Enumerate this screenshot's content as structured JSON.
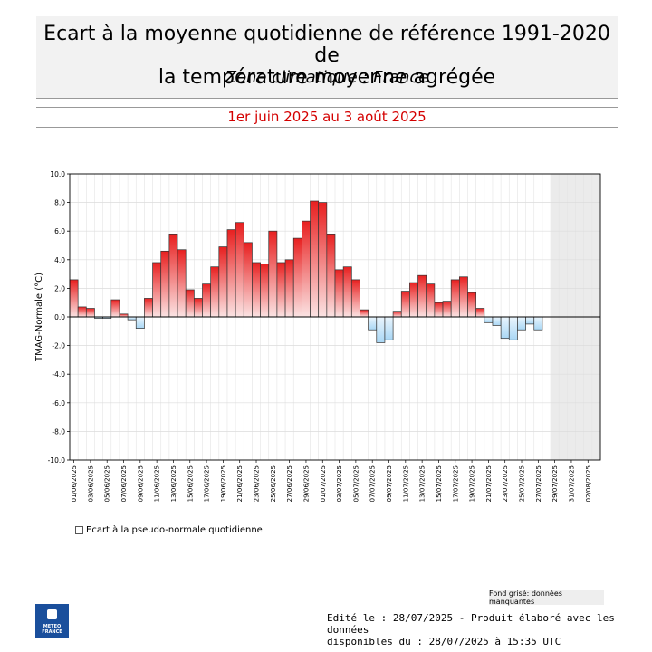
{
  "header": {
    "title_line1": "Ecart à la moyenne quotidienne de référence 1991-2020 de",
    "title_line2": "la température moyenne  agrégée",
    "subtitle": "Zone climatique : France"
  },
  "period": "1er juin 2025 au 3 août 2025",
  "legend": {
    "label": "Ecart à la pseudo-normale quotidienne"
  },
  "missing_note": "Fond grisé: données manquantes",
  "footer": {
    "line1": "Edité le : 28/07/2025 - Produit élaboré avec les données",
    "line2": "disponibles du : 28/07/2025 à 15:35 UTC"
  },
  "logo": {
    "line1": "METEO",
    "line2": "FRANCE"
  },
  "chart_data": {
    "type": "bar",
    "ylabel": "TMAG-Normale (°C)",
    "ylim": [
      -10,
      10
    ],
    "yticks": [
      -10,
      -8,
      -6,
      -4,
      -2,
      0,
      2,
      4,
      6,
      8,
      10
    ],
    "grid": true,
    "x_start": "01/06/2025",
    "x_tick_labels": [
      "01/06/2025",
      "03/06/2025",
      "05/06/2025",
      "07/06/2025",
      "09/06/2025",
      "11/06/2025",
      "13/06/2025",
      "15/06/2025",
      "17/06/2025",
      "19/06/2025",
      "21/06/2025",
      "23/06/2025",
      "25/06/2025",
      "27/06/2025",
      "29/06/2025",
      "01/07/2025",
      "03/07/2025",
      "05/07/2025",
      "07/07/2025",
      "09/07/2025",
      "11/07/2025",
      "13/07/2025",
      "15/07/2025",
      "17/07/2025",
      "19/07/2025",
      "21/07/2025",
      "23/07/2025",
      "25/07/2025",
      "27/07/2025",
      "29/07/2025",
      "31/07/2025",
      "02/08/2025"
    ],
    "values": [
      2.6,
      0.7,
      0.6,
      -0.1,
      -0.1,
      1.2,
      0.2,
      -0.2,
      -0.8,
      1.3,
      3.8,
      4.6,
      5.8,
      4.7,
      1.9,
      1.3,
      2.3,
      3.5,
      4.9,
      6.1,
      6.6,
      5.2,
      3.8,
      3.7,
      6.0,
      3.8,
      4.0,
      5.5,
      6.7,
      8.1,
      8.0,
      5.8,
      3.3,
      3.5,
      2.6,
      0.5,
      -0.9,
      -1.8,
      -1.6,
      0.4,
      1.8,
      2.4,
      2.9,
      2.3,
      1.0,
      1.1,
      2.6,
      2.8,
      1.7,
      0.6,
      -0.4,
      -0.6,
      -1.5,
      -1.6,
      -0.9,
      -0.5,
      -0.9
    ],
    "missing_from": "29/07/2025",
    "missing_label": "Fond grisé: données manquantes",
    "series": [
      {
        "name": "Ecart à la pseudo-normale quotidienne"
      }
    ]
  }
}
